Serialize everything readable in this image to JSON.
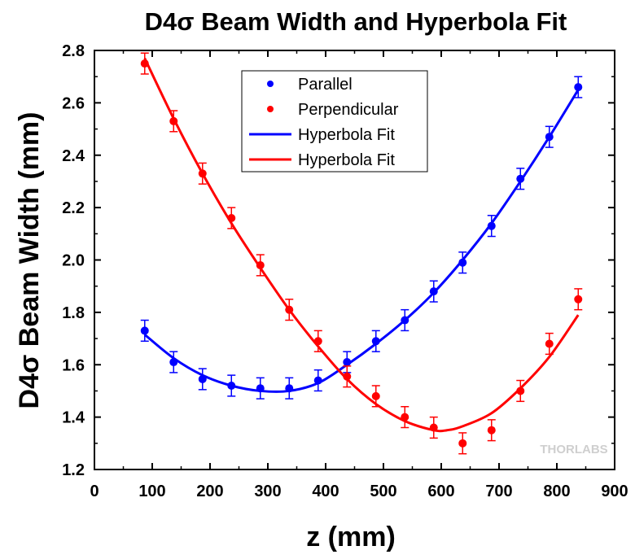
{
  "chart_data": {
    "type": "scatter",
    "title": "D4σ Beam Width and Hyperbola Fit",
    "xlabel": "z (mm)",
    "ylabel": "D4σ Beam Width (mm)",
    "xlim": [
      0,
      900
    ],
    "ylim": [
      1.2,
      2.8
    ],
    "xticks": [
      0,
      100,
      200,
      300,
      400,
      500,
      600,
      700,
      800,
      900
    ],
    "yticks": [
      1.2,
      1.4,
      1.6,
      1.8,
      2.0,
      2.2,
      2.4,
      2.6,
      2.8
    ],
    "xtick_labels": [
      "0",
      "100",
      "200",
      "300",
      "400",
      "500",
      "600",
      "700",
      "800",
      "900"
    ],
    "ytick_labels": [
      "1.2",
      "1.4",
      "1.6",
      "1.8",
      "2.0",
      "2.2",
      "2.4",
      "2.6",
      "2.8"
    ],
    "legend_position": "top-center",
    "grid": false,
    "watermark": "THORLABS",
    "series": [
      {
        "name": "Parallel",
        "kind": "points",
        "color": "#0000ff",
        "x": [
          87,
          137,
          187,
          237,
          287,
          337,
          387,
          437,
          487,
          537,
          587,
          637,
          687,
          737,
          787,
          837
        ],
        "y": [
          1.73,
          1.61,
          1.545,
          1.52,
          1.51,
          1.51,
          1.54,
          1.61,
          1.69,
          1.77,
          1.88,
          1.99,
          2.13,
          2.31,
          2.47,
          2.66
        ],
        "err": 0.04
      },
      {
        "name": "Perpendicular",
        "kind": "points",
        "color": "#ff0000",
        "x": [
          87,
          137,
          187,
          237,
          287,
          337,
          387,
          437,
          487,
          537,
          587,
          637,
          687,
          737,
          787,
          837
        ],
        "y": [
          2.75,
          2.53,
          2.33,
          2.16,
          1.98,
          1.81,
          1.69,
          1.555,
          1.48,
          1.4,
          1.36,
          1.3,
          1.35,
          1.5,
          1.68,
          1.85
        ],
        "err": 0.04
      },
      {
        "name": "Hyperbola Fit",
        "kind": "line",
        "color": "#0000ff",
        "x": [
          87,
          137,
          187,
          237,
          287,
          337,
          387,
          437,
          487,
          537,
          587,
          637,
          687,
          737,
          787,
          837
        ],
        "y": [
          1.715,
          1.625,
          1.56,
          1.52,
          1.5,
          1.5,
          1.53,
          1.6,
          1.68,
          1.77,
          1.875,
          2.0,
          2.14,
          2.3,
          2.47,
          2.65
        ]
      },
      {
        "name": "Hyperbola Fit",
        "kind": "line",
        "color": "#ff0000",
        "x": [
          87,
          137,
          187,
          237,
          287,
          337,
          387,
          437,
          487,
          537,
          587,
          610,
          637,
          687,
          737,
          787,
          837
        ],
        "y": [
          2.77,
          2.54,
          2.33,
          2.14,
          1.97,
          1.81,
          1.67,
          1.545,
          1.45,
          1.385,
          1.35,
          1.35,
          1.365,
          1.415,
          1.51,
          1.63,
          1.79
        ]
      }
    ]
  }
}
